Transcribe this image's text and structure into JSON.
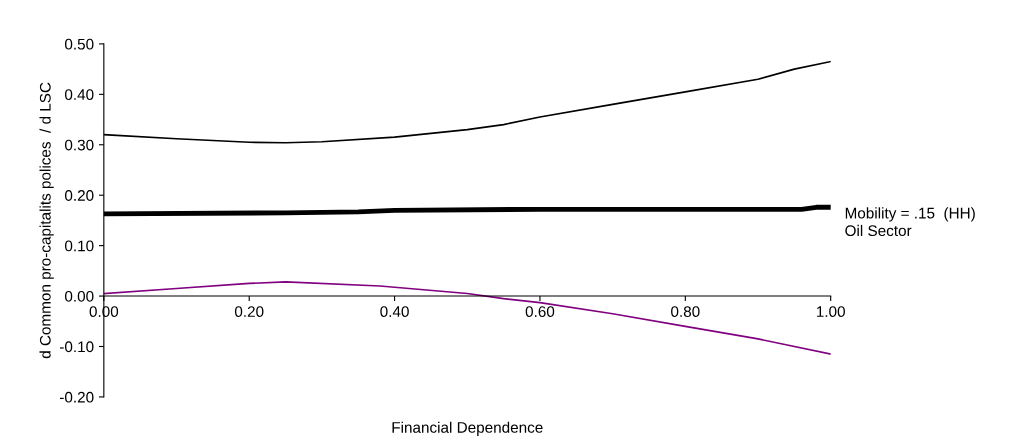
{
  "chart_data": {
    "type": "line",
    "xlabel": "Financial Dependence",
    "ylabel": "d Common pro-capitalits polices  / d LSC",
    "xlim": [
      0,
      1
    ],
    "xticks": [
      {
        "value": 0,
        "label": "0.00"
      },
      {
        "value": 0.2,
        "label": "0.20"
      },
      {
        "value": 0.4,
        "label": "0.40"
      },
      {
        "value": 0.6,
        "label": "0.60"
      },
      {
        "value": 0.8,
        "label": "0.80"
      },
      {
        "value": 1,
        "label": "1.00"
      }
    ],
    "ylim": [
      -0.2,
      0.5
    ],
    "yticks": [
      {
        "value": -0.2,
        "label": "-0.20"
      },
      {
        "value": -0.1,
        "label": "-0.10"
      },
      {
        "value": 0,
        "label": "0.00"
      },
      {
        "value": 0.1,
        "label": "0.10"
      },
      {
        "value": 0.2,
        "label": "0.20"
      },
      {
        "value": 0.3,
        "label": "0.30"
      },
      {
        "value": 0.4,
        "label": "0.40"
      },
      {
        "value": 0.5,
        "label": "0.50"
      }
    ],
    "grid": false,
    "legend": false,
    "marker": "none",
    "line_style": "solid",
    "series": [
      {
        "color": "#000000",
        "x": [
          0,
          0.1,
          0.2,
          0.25,
          0.3,
          0.4,
          0.5,
          0.55,
          0.6,
          0.7,
          0.8,
          0.9,
          0.95,
          1.0
        ],
        "values": [
          0.32,
          0.312,
          0.305,
          0.304,
          0.306,
          0.315,
          0.33,
          0.34,
          0.355,
          0.38,
          0.405,
          0.43,
          0.45,
          0.465
        ]
      },
      {
        "color": "#000000",
        "x": [
          0,
          0.25,
          0.35,
          0.4,
          0.6,
          0.8,
          0.96,
          0.98,
          1.0
        ],
        "values": [
          0.163,
          0.165,
          0.167,
          0.17,
          0.172,
          0.172,
          0.172,
          0.176,
          0.176
        ]
      },
      {
        "color": "#800080",
        "x": [
          0,
          0.1,
          0.2,
          0.25,
          0.38,
          0.5,
          0.55,
          0.6,
          0.7,
          0.8,
          0.9,
          1.0
        ],
        "values": [
          0.005,
          0.015,
          0.025,
          0.028,
          0.02,
          0.005,
          -0.005,
          -0.013,
          -0.035,
          -0.06,
          -0.085,
          -0.115
        ]
      }
    ],
    "annotations": [
      {
        "text": "Mobility = .15  (HH)\nOil Sector",
        "x": 1.0,
        "y": 0.176
      }
    ]
  }
}
